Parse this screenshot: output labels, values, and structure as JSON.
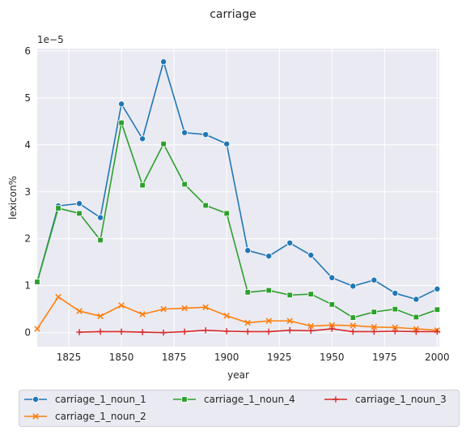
{
  "chart_data": {
    "type": "line",
    "title": "carriage",
    "xlabel": "year",
    "ylabel": "lexicon%",
    "y_scale_label": "1e−5",
    "xlim": [
      1810,
      2001
    ],
    "ylim": [
      -0.3,
      6.05
    ],
    "x_ticks": [
      1825,
      1850,
      1875,
      1900,
      1925,
      1950,
      1975,
      2000
    ],
    "y_ticks": [
      0,
      1,
      2,
      3,
      4,
      5,
      6
    ],
    "grid": true,
    "legend_position": "bottom",
    "series": [
      {
        "name": "carriage_1_noun_1",
        "color": "#1f77b4",
        "marker": "circle",
        "x": [
          1810,
          1820,
          1830,
          1840,
          1850,
          1860,
          1870,
          1880,
          1890,
          1900,
          1910,
          1920,
          1930,
          1940,
          1950,
          1960,
          1970,
          1980,
          1990,
          2000
        ],
        "values": [
          1.08,
          2.7,
          2.75,
          2.45,
          4.87,
          4.13,
          5.77,
          4.26,
          4.22,
          4.02,
          1.75,
          1.63,
          1.91,
          1.65,
          1.17,
          0.99,
          1.12,
          0.84,
          0.71,
          0.93
        ]
      },
      {
        "name": "carriage_1_noun_2",
        "color": "#ff7f0e",
        "marker": "x",
        "x": [
          1810,
          1820,
          1830,
          1840,
          1850,
          1860,
          1870,
          1880,
          1890,
          1900,
          1910,
          1920,
          1930,
          1940,
          1950,
          1960,
          1970,
          1980,
          1990,
          2000
        ],
        "values": [
          0.08,
          0.76,
          0.46,
          0.35,
          0.58,
          0.39,
          0.5,
          0.52,
          0.54,
          0.36,
          0.21,
          0.25,
          0.25,
          0.14,
          0.16,
          0.15,
          0.12,
          0.11,
          0.08,
          0.05
        ]
      },
      {
        "name": "carriage_1_noun_4",
        "color": "#2ca02c",
        "marker": "square",
        "x": [
          1810,
          1820,
          1830,
          1840,
          1850,
          1860,
          1870,
          1880,
          1890,
          1900,
          1910,
          1920,
          1930,
          1940,
          1950,
          1960,
          1970,
          1980,
          1990,
          2000
        ],
        "values": [
          1.08,
          2.65,
          2.54,
          1.97,
          4.47,
          3.14,
          4.02,
          3.16,
          2.71,
          2.54,
          0.86,
          0.9,
          0.8,
          0.82,
          0.6,
          0.32,
          0.44,
          0.5,
          0.33,
          0.49
        ]
      },
      {
        "name": "carriage_1_noun_3",
        "color": "#d62728",
        "marker": "plus",
        "x": [
          1830,
          1840,
          1850,
          1860,
          1870,
          1880,
          1890,
          1900,
          1910,
          1920,
          1930,
          1940,
          1950,
          1960,
          1970,
          1980,
          1990,
          2000
        ],
        "values": [
          0.01,
          0.02,
          0.02,
          0.01,
          0.0,
          0.02,
          0.05,
          0.03,
          0.02,
          0.02,
          0.05,
          0.04,
          0.08,
          0.02,
          0.02,
          0.03,
          0.02,
          0.02
        ]
      }
    ],
    "legend_order": [
      0,
      2,
      3,
      1
    ]
  }
}
